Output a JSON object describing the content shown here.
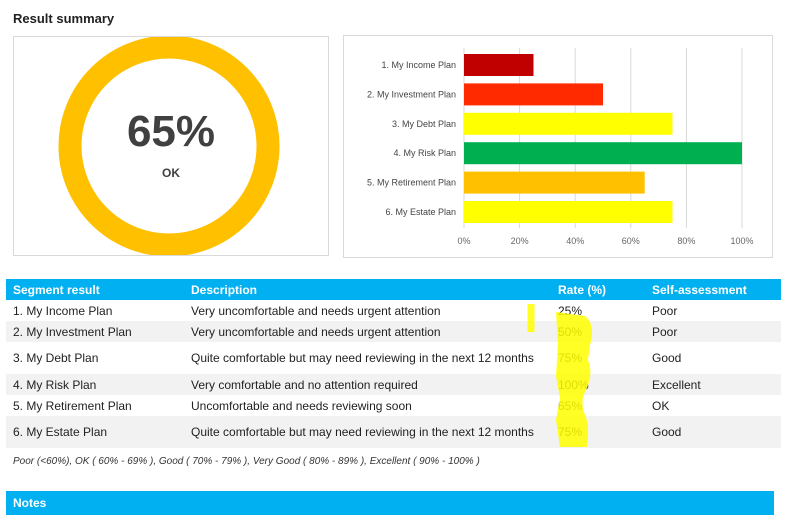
{
  "title": "Result summary",
  "summary": {
    "percent": "65%",
    "label": "OK",
    "value": 65,
    "ring_color": "#ffc000"
  },
  "chart_data": {
    "type": "bar",
    "orientation": "horizontal",
    "categories": [
      "1. My Income Plan",
      "2. My Investment Plan",
      "3. My Debt Plan",
      "4. My Risk Plan",
      "5. My Retirement Plan",
      "6. My Estate Plan"
    ],
    "values": [
      25,
      50,
      75,
      100,
      65,
      75
    ],
    "colors": [
      "#c00000",
      "#ff2a00",
      "#ffff00",
      "#00b050",
      "#ffc000",
      "#ffff00"
    ],
    "xlim": [
      0,
      100
    ],
    "xticks": [
      "0%",
      "20%",
      "40%",
      "60%",
      "80%",
      "100%"
    ],
    "grid": true
  },
  "table": {
    "headers": [
      "Segment result",
      "Description",
      "Rate (%)",
      "Self-assessment"
    ],
    "rows": [
      [
        "1. My Income Plan",
        "Very uncomfortable and needs urgent attention",
        "25%",
        "Poor"
      ],
      [
        "2. My Investment Plan",
        "Very uncomfortable and needs urgent attention",
        "50%",
        "Poor"
      ],
      [
        "3. My Debt Plan",
        "Quite comfortable but may need reviewing in the next 12 months",
        "75%",
        "Good"
      ],
      [
        "4. My Risk Plan",
        "Very comfortable and no attention required",
        "100%",
        "Excellent"
      ],
      [
        "5. My Retirement Plan",
        "Uncomfortable and needs reviewing soon",
        "65%",
        "OK"
      ],
      [
        "6. My Estate Plan",
        "Quite comfortable but may need reviewing in the next 12 months",
        "75%",
        "Good"
      ]
    ]
  },
  "legend": "Poor (<60%), OK ( 60% - 69% ), Good ( 70% - 79% ), Very Good ( 80% - 89% ), Excellent ( 90% - 100% )",
  "notes": "Notes"
}
